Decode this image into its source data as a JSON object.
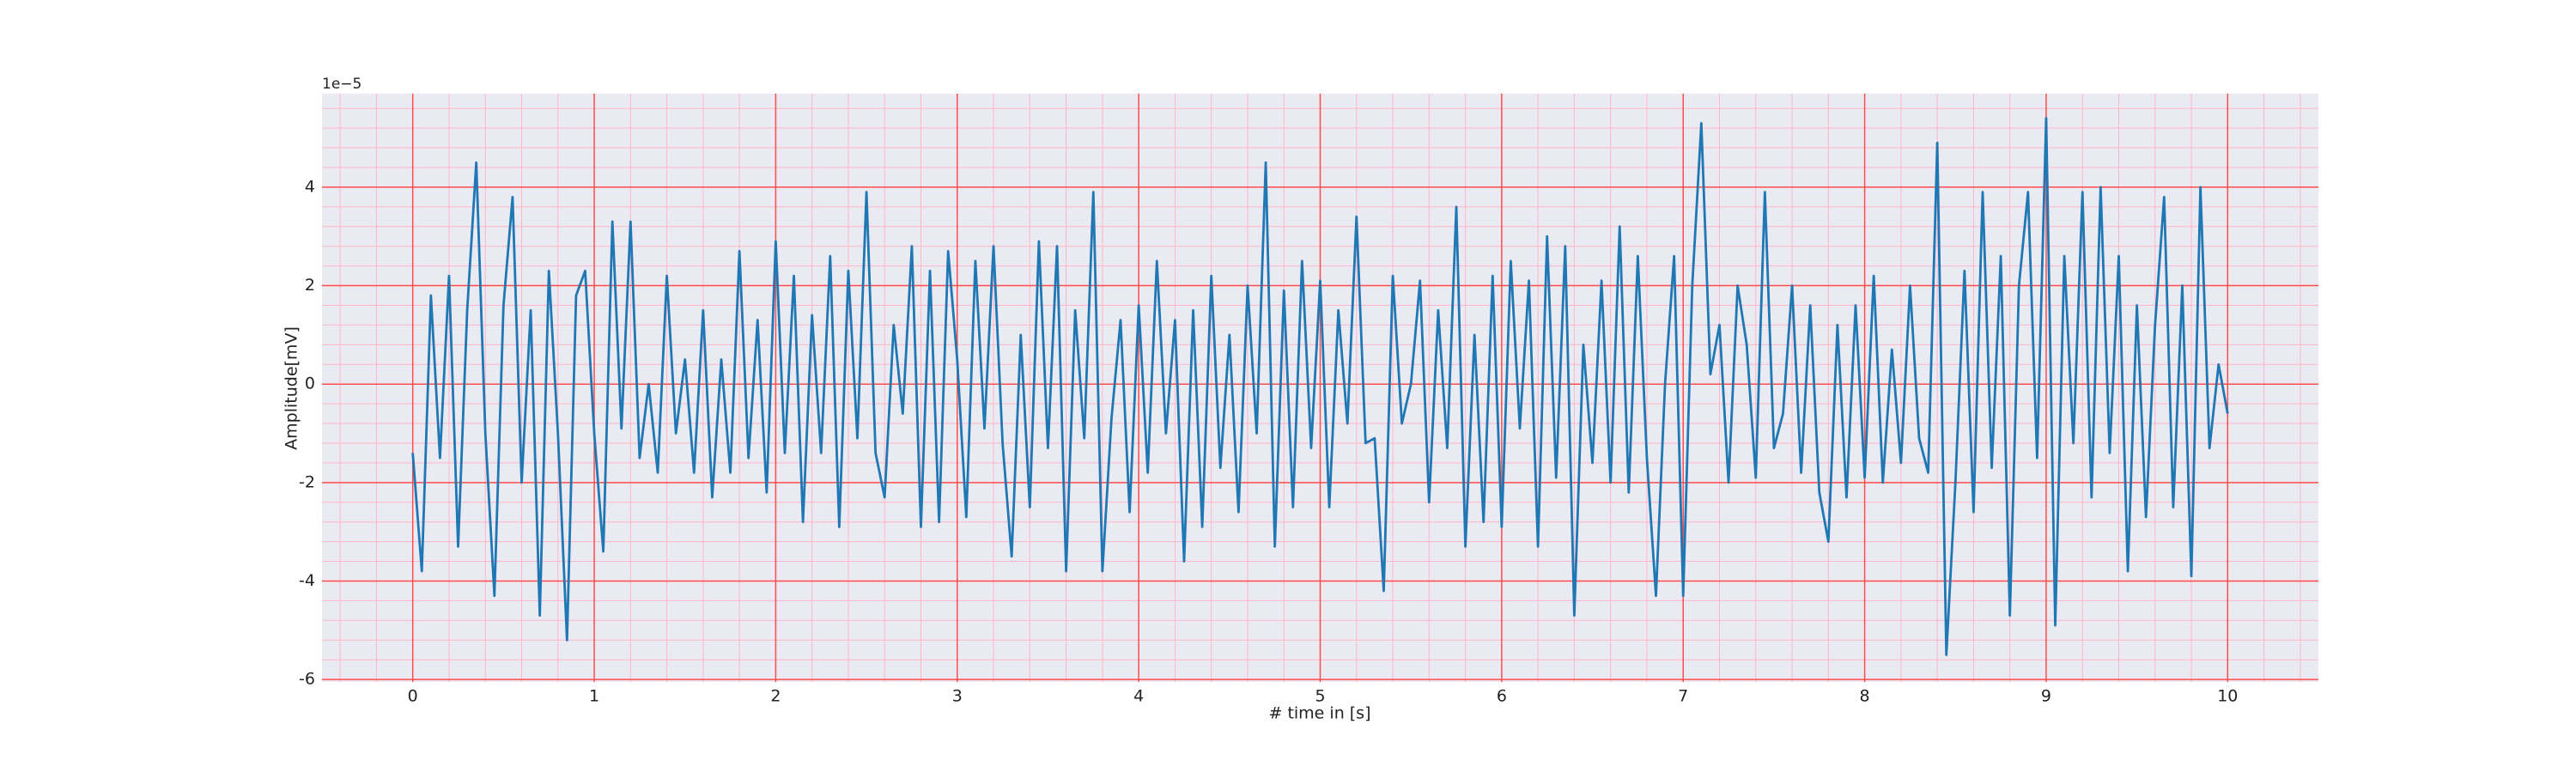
{
  "chart_data": {
    "type": "line",
    "x_label": "# time in [s]",
    "y_label": "Amplitude[mV]",
    "y_offset_text": "1e−5",
    "xlim": [
      -0.5,
      10.5
    ],
    "ylim": [
      -6.05,
      5.9
    ],
    "xticks": [
      0,
      1,
      2,
      3,
      4,
      5,
      6,
      7,
      8,
      9,
      10
    ],
    "yticks": [
      -6,
      -4,
      -2,
      0,
      2,
      4
    ],
    "xminorticks": [
      -0.4,
      -0.2,
      0.2,
      0.4,
      0.6,
      0.8,
      1.2,
      1.4,
      1.6,
      1.8,
      2.2,
      2.4,
      2.6,
      2.8,
      3.2,
      3.4,
      3.6,
      3.8,
      4.2,
      4.4,
      4.6,
      4.8,
      5.2,
      5.4,
      5.6,
      5.8,
      6.2,
      6.4,
      6.6,
      6.8,
      7.2,
      7.4,
      7.6,
      7.8,
      8.2,
      8.4,
      8.6,
      8.8,
      9.2,
      9.4,
      9.6,
      9.8,
      10.2,
      10.4
    ],
    "yminorticks": [
      -5.6,
      -5.2,
      -4.8,
      -4.4,
      -3.6,
      -3.2,
      -2.8,
      -2.4,
      -1.6,
      -1.2,
      -0.8,
      -0.4,
      0.4,
      0.8,
      1.2,
      1.6,
      2.4,
      2.8,
      3.2,
      3.6,
      4.4,
      4.8,
      5.2,
      5.6
    ],
    "grid": true,
    "major_grid_color": "#ff4d4d",
    "minor_grid_color": "#ffb6c8",
    "background": "#eaeaf2",
    "series": [
      {
        "color": "#1f77b4",
        "x": [
          0,
          0.05,
          0.1,
          0.15,
          0.2,
          0.25,
          0.3,
          0.35,
          0.4,
          0.45,
          0.5,
          0.55,
          0.6,
          0.65,
          0.7,
          0.75,
          0.8,
          0.85,
          0.9,
          0.95,
          1,
          1.05,
          1.1,
          1.15,
          1.2,
          1.25,
          1.3,
          1.35,
          1.4,
          1.45,
          1.5,
          1.55,
          1.6,
          1.65,
          1.7,
          1.75,
          1.8,
          1.85,
          1.9,
          1.95,
          2,
          2.05,
          2.1,
          2.15,
          2.2,
          2.25,
          2.3,
          2.35,
          2.4,
          2.45,
          2.5,
          2.55,
          2.6,
          2.65,
          2.7,
          2.75,
          2.8,
          2.85,
          2.9,
          2.95,
          3,
          3.05,
          3.1,
          3.15,
          3.2,
          3.25,
          3.3,
          3.35,
          3.4,
          3.45,
          3.5,
          3.55,
          3.6,
          3.65,
          3.7,
          3.75,
          3.8,
          3.85,
          3.9,
          3.95,
          4,
          4.05,
          4.1,
          4.15,
          4.2,
          4.25,
          4.3,
          4.35,
          4.4,
          4.45,
          4.5,
          4.55,
          4.6,
          4.65,
          4.7,
          4.75,
          4.8,
          4.85,
          4.9,
          4.95,
          5,
          5.05,
          5.1,
          5.15,
          5.2,
          5.25,
          5.3,
          5.35,
          5.4,
          5.45,
          5.5,
          5.55,
          5.6,
          5.65,
          5.7,
          5.75,
          5.8,
          5.85,
          5.9,
          5.95,
          6,
          6.05,
          6.1,
          6.15,
          6.2,
          6.25,
          6.3,
          6.35,
          6.4,
          6.45,
          6.5,
          6.55,
          6.6,
          6.65,
          6.7,
          6.75,
          6.8,
          6.85,
          6.9,
          6.95,
          7,
          7.05,
          7.1,
          7.15,
          7.2,
          7.25,
          7.3,
          7.35,
          7.4,
          7.45,
          7.5,
          7.55,
          7.6,
          7.65,
          7.7,
          7.75,
          7.8,
          7.85,
          7.9,
          7.95,
          8,
          8.05,
          8.1,
          8.15,
          8.2,
          8.25,
          8.3,
          8.35,
          8.4,
          8.45,
          8.5,
          8.55,
          8.6,
          8.65,
          8.7,
          8.75,
          8.8,
          8.85,
          8.9,
          8.95,
          9,
          9.05,
          9.1,
          9.15,
          9.2,
          9.25,
          9.3,
          9.35,
          9.4,
          9.45,
          9.5,
          9.55,
          9.6,
          9.65,
          9.7,
          9.75,
          9.8,
          9.85,
          9.9,
          9.95,
          10
        ],
        "values": [
          -1.4,
          -3.8,
          1.8,
          -1.5,
          2.2,
          -3.3,
          1.5,
          4.5,
          -1.0,
          -4.3,
          1.6,
          3.8,
          -2.0,
          1.5,
          -4.7,
          2.3,
          -1.0,
          -5.2,
          1.8,
          2.3,
          -1.0,
          -3.4,
          3.3,
          -0.9,
          3.3,
          -1.5,
          0.0,
          -1.8,
          2.2,
          -1.0,
          0.5,
          -1.8,
          1.5,
          -2.3,
          0.5,
          -1.8,
          2.7,
          -1.5,
          1.3,
          -2.2,
          2.9,
          -1.4,
          2.2,
          -2.8,
          1.4,
          -1.4,
          2.6,
          -2.9,
          2.3,
          -1.1,
          3.9,
          -1.4,
          -2.3,
          1.2,
          -0.6,
          2.8,
          -2.9,
          2.3,
          -2.8,
          2.7,
          0.5,
          -2.7,
          2.5,
          -0.9,
          2.8,
          -1.2,
          -3.5,
          1.0,
          -2.5,
          2.9,
          -1.3,
          2.8,
          -3.8,
          1.5,
          -1.1,
          3.9,
          -3.8,
          -0.7,
          1.3,
          -2.6,
          1.6,
          -1.8,
          2.5,
          -1.0,
          1.3,
          -3.6,
          1.5,
          -2.9,
          2.2,
          -1.7,
          1.0,
          -2.6,
          2.0,
          -1.0,
          4.5,
          -3.3,
          1.9,
          -2.5,
          2.5,
          -1.3,
          2.1,
          -2.5,
          1.5,
          -0.8,
          3.4,
          -1.2,
          -1.1,
          -4.2,
          2.2,
          -0.8,
          0.0,
          2.1,
          -2.4,
          1.5,
          -1.3,
          3.6,
          -3.3,
          1.0,
          -2.8,
          2.2,
          -2.9,
          2.5,
          -0.9,
          2.1,
          -3.3,
          3.0,
          -1.9,
          2.8,
          -4.7,
          0.8,
          -1.6,
          2.1,
          -2.0,
          3.2,
          -2.2,
          2.6,
          -1.5,
          -4.3,
          0.0,
          2.6,
          -4.3,
          2.0,
          5.3,
          0.2,
          1.2,
          -2.0,
          2.0,
          0.8,
          -1.9,
          3.9,
          -1.3,
          -0.6,
          2.0,
          -1.8,
          1.6,
          -2.2,
          -3.2,
          1.2,
          -2.3,
          1.6,
          -1.9,
          2.2,
          -2.0,
          0.7,
          -1.6,
          2.0,
          -1.1,
          -1.8,
          4.9,
          -5.5,
          -2.0,
          2.3,
          -2.6,
          3.9,
          -1.7,
          2.6,
          -4.7,
          2.0,
          3.9,
          -1.5,
          5.4,
          -4.9,
          2.6,
          -1.2,
          3.9,
          -2.3,
          4.0,
          -1.4,
          2.6,
          -3.8,
          1.6,
          -2.7,
          1.2,
          3.8,
          -2.5,
          2.0,
          -3.9,
          4.0,
          -1.3,
          0.4,
          -0.6
        ]
      }
    ]
  }
}
